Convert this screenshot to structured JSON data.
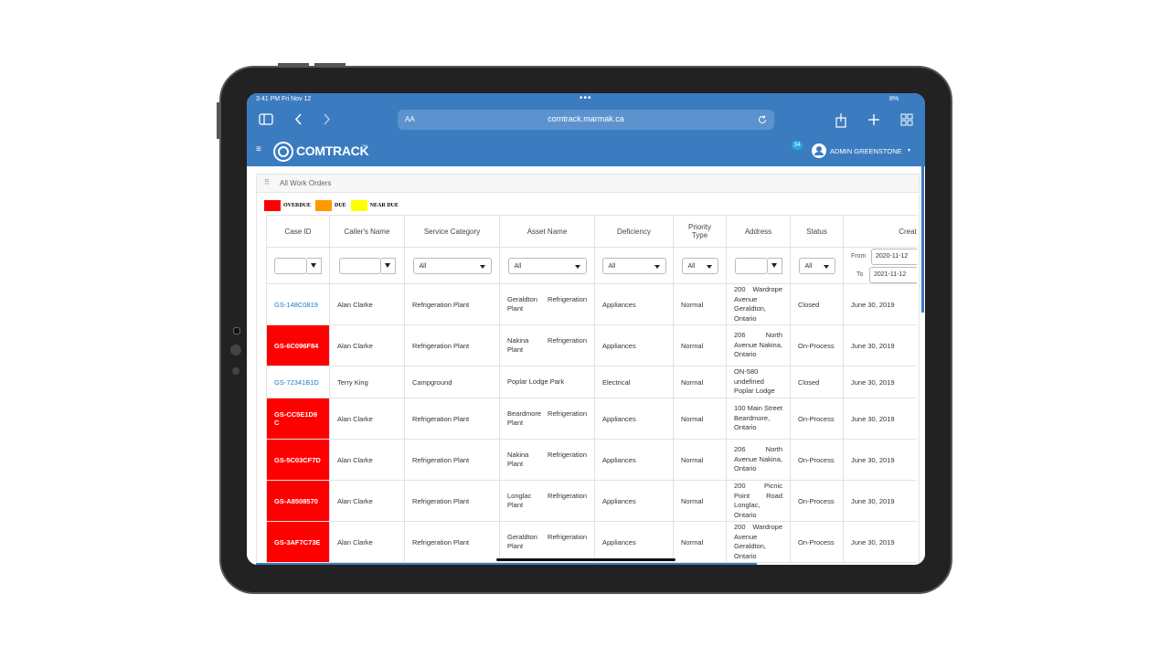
{
  "status_bar": {
    "time": "3:41 PM  Fri Nov 12",
    "battery": "8%"
  },
  "browser": {
    "text_size": "AA",
    "url": "comtrack.marmak.ca"
  },
  "app_header": {
    "brand": "COMTRACK",
    "trademark": "TM",
    "notifications": "34",
    "user": "ADMIN GREENSTONE"
  },
  "panel": {
    "title": "All Work Orders"
  },
  "legend": [
    {
      "label": "OVERDUE",
      "color": "#ff0000"
    },
    {
      "label": "DUE",
      "color": "#ff9900"
    },
    {
      "label": "NEAR DUE",
      "color": "#ffff00"
    }
  ],
  "table": {
    "columns": [
      "Case ID",
      "Caller's Name",
      "Service Category",
      "Asset Name",
      "Deficiency",
      "Priority Type",
      "Address",
      "Status",
      "Created Date"
    ],
    "filters": {
      "service_category": "All",
      "asset_name": "All",
      "deficiency": "All",
      "priority_type": "All",
      "status": "All",
      "created_from_label": "From",
      "created_from": "2020-11-12",
      "created_to_label": "To",
      "created_to": "2021-11-12"
    },
    "rows": [
      {
        "case_color": "#1a7ac7",
        "cells": [
          "GS-148C0819",
          "Alan Clarke",
          "Refrigeration Plant",
          "Geraldton Refrigeration Plant",
          "Appliances",
          "Normal",
          "200 Wardrope Avenue Geraldton, Ontario",
          "Closed",
          "June 30, 2019"
        ]
      },
      {
        "case_color": "#ff0000",
        "cells": [
          "GS-6C096F84",
          "Alan Clarke",
          "Refrigeration Plant",
          "Nakina Refrigeration Plant",
          "Appliances",
          "Normal",
          "206 North Avenue Nakina, Ontario",
          "On-Process",
          "June 30, 2019"
        ]
      },
      {
        "case_color": "#1a7ac7",
        "cells": [
          "GS-72341B1D",
          "Terry King",
          "Campground",
          "Poplar Lodge Park",
          "Electrical",
          "Normal",
          "ON-580 undefined Poplar Lodge",
          "Closed",
          "June 30, 2019"
        ]
      },
      {
        "case_color": "#ff0000",
        "cells": [
          "GS-CC5E1D9C",
          "Alan Clarke",
          "Refrigeration Plant",
          "Beardmore Refrigeration Plant",
          "Appliances",
          "Normal",
          "100 Main Street Beardmore, Ontario",
          "On-Process",
          "June 30, 2019"
        ]
      },
      {
        "case_color": "#ff0000",
        "cells": [
          "GS-5C03CF7D",
          "Alan Clarke",
          "Refrigeration Plant",
          "Nakina Refrigeration Plant",
          "Appliances",
          "Normal",
          "206 North Avenue Nakina, Ontario",
          "On-Process",
          "June 30, 2019"
        ]
      },
      {
        "case_color": "#ff0000",
        "cells": [
          "GS-A8508570",
          "Alan Clarke",
          "Refrigeration Plant",
          "Longlac Refrigeration Plant",
          "Appliances",
          "Normal",
          "200 Picnic Point Road Longlac, Ontario",
          "On-Process",
          "June 30, 2019"
        ]
      },
      {
        "case_color": "#ff0000",
        "cells": [
          "GS-3AF7C73E",
          "Alan Clarke",
          "Refrigeration Plant",
          "Geraldton Refrigeration Plant",
          "Appliances",
          "Normal",
          "200 Wardrope Avenue Geraldton, Ontario",
          "On-Process",
          "June 30, 2019"
        ]
      }
    ]
  }
}
